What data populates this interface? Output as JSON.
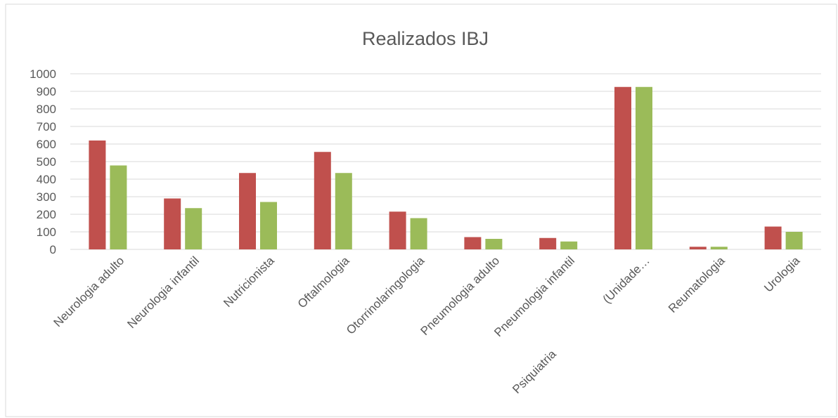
{
  "chart_data": {
    "type": "bar",
    "title": "Realizados IBJ",
    "categories": [
      "Neurologia adulto",
      "Neurologia infantil",
      "Nutricionista",
      "Oftalmologia",
      "Otorrinolaringologia",
      "Pneumologia adulto",
      "Pneumologia infantil",
      [
        "Psiquiatria",
        "(Unidade…"
      ],
      "Reumatologia",
      "Urologia"
    ],
    "series": [
      {
        "color": "#c0504d",
        "values": [
          620,
          290,
          435,
          555,
          215,
          70,
          65,
          925,
          15,
          130
        ]
      },
      {
        "color": "#9bbb59",
        "values": [
          478,
          235,
          270,
          435,
          178,
          60,
          45,
          925,
          15,
          100
        ]
      }
    ],
    "ylim": [
      0,
      1000
    ],
    "yticks": [
      0,
      100,
      200,
      300,
      400,
      500,
      600,
      700,
      800,
      900,
      1000
    ],
    "grid": true
  }
}
